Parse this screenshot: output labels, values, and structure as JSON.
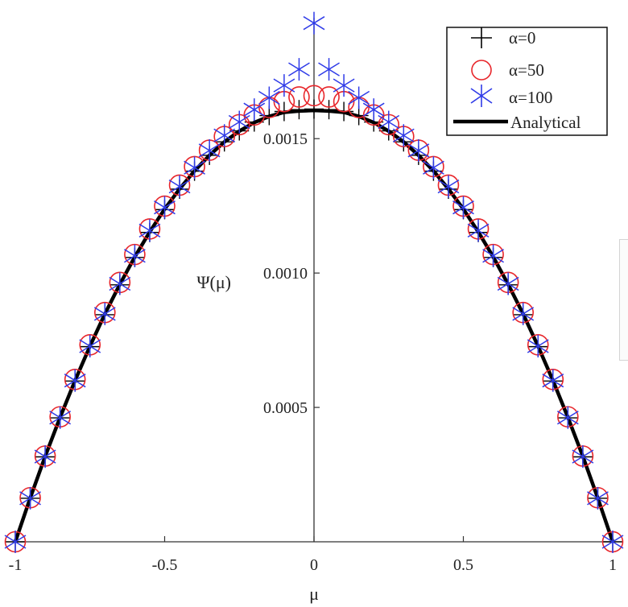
{
  "chart_data": {
    "type": "line",
    "title": "",
    "xlabel": "μ",
    "ylabel": "Ψ(μ)",
    "xlim": [
      -1,
      1
    ],
    "ylim": [
      0,
      0.00195
    ],
    "x_ticks": [
      -1,
      -0.5,
      0,
      0.5,
      1
    ],
    "x_tick_labels": [
      "-1",
      "-0.5",
      "0",
      "0.5",
      "1"
    ],
    "y_ticks": [
      0.0005,
      0.001,
      0.0015
    ],
    "y_tick_labels": [
      "0.0005",
      "0.0010",
      "0.0015"
    ],
    "axes_cross_at_origin": true,
    "grid": false,
    "legend_position": "top-right",
    "series": [
      {
        "name": "α=0",
        "marker": "plus",
        "color": "#000000",
        "x": [
          -1,
          -0.95,
          -0.9,
          -0.85,
          -0.8,
          -0.75,
          -0.7,
          -0.65,
          -0.6,
          -0.55,
          -0.5,
          -0.45,
          -0.4,
          -0.35,
          -0.3,
          -0.25,
          -0.2,
          -0.15,
          -0.1,
          -0.05,
          0,
          0.05,
          0.1,
          0.15,
          0.2,
          0.25,
          0.3,
          0.35,
          0.4,
          0.45,
          0.5,
          0.55,
          0.6,
          0.65,
          0.7,
          0.75,
          0.8,
          0.85,
          0.9,
          0.95,
          1
        ],
        "y": [
          0,
          0.000162,
          0.000316,
          0.000461,
          0.000598,
          0.000726,
          0.000845,
          0.000956,
          0.001058,
          0.001151,
          0.001236,
          0.001312,
          0.001379,
          0.001438,
          0.001488,
          0.001529,
          0.001562,
          0.001586,
          0.001601,
          0.001608,
          0.00161,
          0.001608,
          0.001601,
          0.001586,
          0.001562,
          0.001529,
          0.001488,
          0.001438,
          0.001379,
          0.001312,
          0.001236,
          0.001151,
          0.001058,
          0.000956,
          0.000845,
          0.000726,
          0.000598,
          0.000461,
          0.000316,
          0.000162,
          0
        ]
      },
      {
        "name": "α=50",
        "marker": "circle",
        "color": "#e8262b",
        "x": [
          -1,
          -0.95,
          -0.9,
          -0.85,
          -0.8,
          -0.75,
          -0.7,
          -0.65,
          -0.6,
          -0.55,
          -0.5,
          -0.45,
          -0.4,
          -0.35,
          -0.3,
          -0.25,
          -0.2,
          -0.15,
          -0.1,
          -0.05,
          0,
          0.05,
          0.1,
          0.15,
          0.2,
          0.25,
          0.3,
          0.35,
          0.4,
          0.45,
          0.5,
          0.55,
          0.6,
          0.65,
          0.7,
          0.75,
          0.8,
          0.85,
          0.9,
          0.95,
          1
        ],
        "y": [
          0,
          0.000164,
          0.000319,
          0.000465,
          0.000604,
          0.000733,
          0.000853,
          0.000965,
          0.001069,
          0.001164,
          0.001249,
          0.001327,
          0.001396,
          0.001457,
          0.001508,
          0.001552,
          0.001588,
          0.001616,
          0.001638,
          0.001655,
          0.00166,
          0.001655,
          0.001638,
          0.001616,
          0.001588,
          0.001552,
          0.001508,
          0.001457,
          0.001396,
          0.001327,
          0.001249,
          0.001164,
          0.001069,
          0.000965,
          0.000853,
          0.000733,
          0.000604,
          0.000465,
          0.000319,
          0.000164,
          0
        ]
      },
      {
        "name": "α=100",
        "marker": "star",
        "color": "#2f3be8",
        "x": [
          -1,
          -0.95,
          -0.9,
          -0.85,
          -0.8,
          -0.75,
          -0.7,
          -0.65,
          -0.6,
          -0.55,
          -0.5,
          -0.45,
          -0.4,
          -0.35,
          -0.3,
          -0.25,
          -0.2,
          -0.15,
          -0.1,
          -0.05,
          0,
          0.05,
          0.1,
          0.15,
          0.2,
          0.25,
          0.3,
          0.35,
          0.4,
          0.45,
          0.5,
          0.55,
          0.6,
          0.65,
          0.7,
          0.75,
          0.8,
          0.85,
          0.9,
          0.95,
          1
        ],
        "y": [
          0,
          0.000162,
          0.000317,
          0.000462,
          0.0006,
          0.000728,
          0.000848,
          0.00096,
          0.001064,
          0.001158,
          0.001244,
          0.001322,
          0.001392,
          0.001456,
          0.001512,
          0.001562,
          0.001608,
          0.001652,
          0.001698,
          0.001758,
          0.00193,
          0.001758,
          0.001698,
          0.001652,
          0.001608,
          0.001562,
          0.001512,
          0.001456,
          0.001392,
          0.001322,
          0.001244,
          0.001158,
          0.001064,
          0.00096,
          0.000848,
          0.000728,
          0.0006,
          0.000462,
          0.000317,
          0.000162,
          0
        ]
      },
      {
        "name": "Analytical",
        "marker": "none",
        "style": "solid-thick",
        "color": "#000000",
        "x": [
          -1,
          -0.95,
          -0.9,
          -0.85,
          -0.8,
          -0.75,
          -0.7,
          -0.65,
          -0.6,
          -0.55,
          -0.5,
          -0.45,
          -0.4,
          -0.35,
          -0.3,
          -0.25,
          -0.2,
          -0.15,
          -0.1,
          -0.05,
          0,
          0.05,
          0.1,
          0.15,
          0.2,
          0.25,
          0.3,
          0.35,
          0.4,
          0.45,
          0.5,
          0.55,
          0.6,
          0.65,
          0.7,
          0.75,
          0.8,
          0.85,
          0.9,
          0.95,
          1
        ],
        "y": [
          0,
          0.000163,
          0.000318,
          0.000463,
          0.0006,
          0.000728,
          0.000848,
          0.000958,
          0.00106,
          0.001153,
          0.001238,
          0.001313,
          0.00138,
          0.001438,
          0.001488,
          0.001528,
          0.00156,
          0.001583,
          0.001598,
          0.001603,
          0.001605,
          0.001603,
          0.001598,
          0.001583,
          0.00156,
          0.001528,
          0.001488,
          0.001438,
          0.00138,
          0.001313,
          0.001238,
          0.001153,
          0.00106,
          0.000958,
          0.000848,
          0.000728,
          0.0006,
          0.000463,
          0.000318,
          0.000163,
          0
        ]
      }
    ]
  }
}
